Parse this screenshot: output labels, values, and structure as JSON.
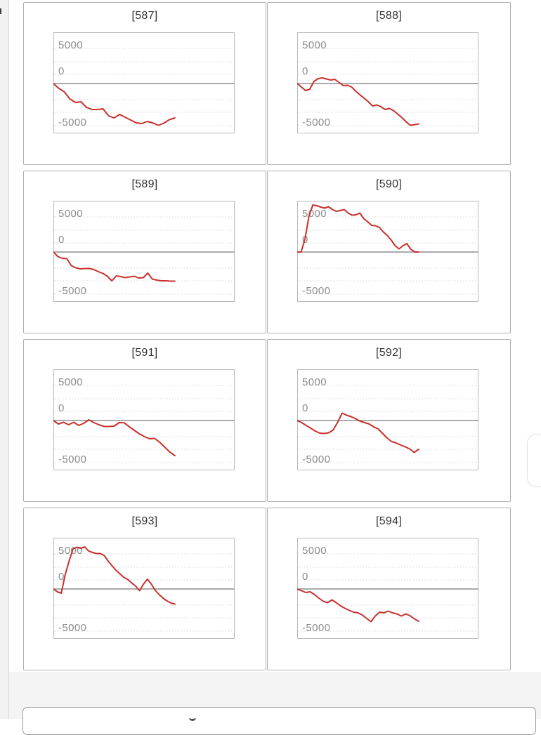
{
  "page": {
    "background": "#ffffff",
    "gutter_color": "#f2f2f3",
    "card_border_color": "#b0b0b0",
    "plot_border_color": "#b9b9b9",
    "gridline_color": "#d7d7d7",
    "zero_line_color": "#8f8f8f",
    "tick_label_color": "#8c8c8c",
    "title_color": "#333333"
  },
  "chart_data": {
    "type": "line",
    "series_color": "#c9302c",
    "y_ticks": [
      "5000",
      "0",
      "-5000"
    ],
    "y_tick_values": [
      5000,
      0,
      -5000
    ],
    "ylim": [
      7300,
      -7300
    ],
    "x_extent_fraction": 0.67,
    "x_axis_labels": [],
    "grid": "dotted horizontal, solid zero line",
    "legend": "none",
    "charts": [
      {
        "title": "[587]",
        "values": [
          0,
          -700,
          -1200,
          -2200,
          -2700,
          -2600,
          -3400,
          -3700,
          -3700,
          -3600,
          -4600,
          -4900,
          -4400,
          -4800,
          -5200,
          -5600,
          -5700,
          -5400,
          -5600,
          -5950,
          -5650,
          -5150,
          -4900
        ]
      },
      {
        "title": "[588]",
        "values": [
          0,
          -500,
          -1000,
          -800,
          300,
          700,
          800,
          650,
          500,
          600,
          150,
          -300,
          -250,
          -500,
          -1100,
          -1600,
          -2100,
          -2600,
          -3200,
          -3050,
          -3300,
          -3700,
          -3550,
          -3850,
          -4350,
          -4850,
          -5450,
          -5950,
          -5850,
          -5750
        ]
      },
      {
        "title": "[589]",
        "values": [
          0,
          -650,
          -900,
          -950,
          -1950,
          -2250,
          -2400,
          -2350,
          -2350,
          -2500,
          -2800,
          -3050,
          -3450,
          -4100,
          -3400,
          -3500,
          -3650,
          -3550,
          -3450,
          -3700,
          -3650,
          -3000,
          -3850,
          -4000,
          -4100,
          -4100,
          -4150,
          -4150
        ]
      },
      {
        "title": "[590]",
        "values": [
          0,
          0,
          1900,
          5100,
          6700,
          6600,
          6400,
          6250,
          6450,
          6050,
          5800,
          5900,
          6050,
          5550,
          5250,
          5300,
          5550,
          4750,
          4300,
          3800,
          3750,
          3500,
          2850,
          2350,
          1700,
          900,
          450,
          900,
          1200,
          400,
          0,
          0
        ]
      },
      {
        "title": "[591]",
        "values": [
          0,
          -500,
          -250,
          -600,
          -250,
          -700,
          -400,
          100,
          -300,
          -600,
          -850,
          -850,
          -800,
          -300,
          -320,
          -900,
          -1400,
          -1900,
          -2300,
          -2600,
          -2550,
          -3100,
          -3800,
          -4500,
          -5000
        ]
      },
      {
        "title": "[592]",
        "values": [
          0,
          -300,
          -700,
          -1100,
          -1500,
          -1800,
          -1850,
          -1750,
          -1350,
          -250,
          1050,
          750,
          550,
          250,
          -100,
          -300,
          -500,
          -900,
          -1200,
          -1850,
          -2500,
          -3000,
          -3200,
          -3500,
          -3750,
          -4050,
          -4550,
          -4100
        ]
      },
      {
        "title": "[593]",
        "values": [
          0,
          -400,
          -600,
          2000,
          3950,
          5700,
          5950,
          5800,
          6000,
          5400,
          5200,
          5050,
          5050,
          4750,
          3950,
          3300,
          2650,
          2150,
          1650,
          1350,
          850,
          400,
          -250,
          700,
          1400,
          700,
          -200,
          -800,
          -1300,
          -1700,
          -2000,
          -2150
        ]
      },
      {
        "title": "[594]",
        "values": [
          0,
          -250,
          -500,
          -400,
          -800,
          -1300,
          -1750,
          -1950,
          -1550,
          -1950,
          -2400,
          -2750,
          -3050,
          -3300,
          -3400,
          -3700,
          -4200,
          -4650,
          -3850,
          -3300,
          -3400,
          -3150,
          -3400,
          -3550,
          -3850,
          -3550,
          -3800,
          -4250,
          -4600
        ]
      }
    ]
  }
}
